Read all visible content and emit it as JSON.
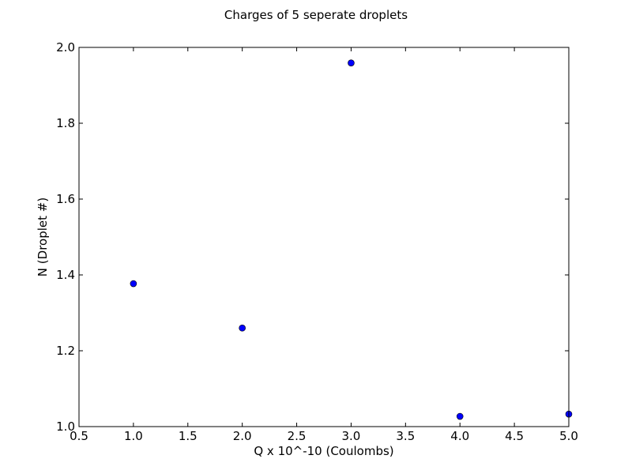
{
  "chart_data": {
    "type": "scatter",
    "title": "Charges of 5 seperate droplets",
    "xlabel": "Q x 10^-10 (Coulombs)",
    "ylabel": "N (Droplet #)",
    "xlim": [
      0.5,
      5.0
    ],
    "ylim": [
      1.0,
      2.0
    ],
    "xticks": [
      "0.5",
      "1.0",
      "1.5",
      "2.0",
      "2.5",
      "3.0",
      "3.5",
      "4.0",
      "4.5",
      "5.0"
    ],
    "yticks": [
      "1.0",
      "1.2",
      "1.4",
      "1.6",
      "1.8",
      "2.0"
    ],
    "grid": false,
    "series": [
      {
        "x": [
          1.0,
          2.0,
          3.0,
          4.0,
          5.0
        ],
        "y": [
          1.377,
          1.26,
          1.959,
          1.027,
          1.033
        ],
        "color": "#0000ff",
        "marker": "circle"
      }
    ]
  }
}
